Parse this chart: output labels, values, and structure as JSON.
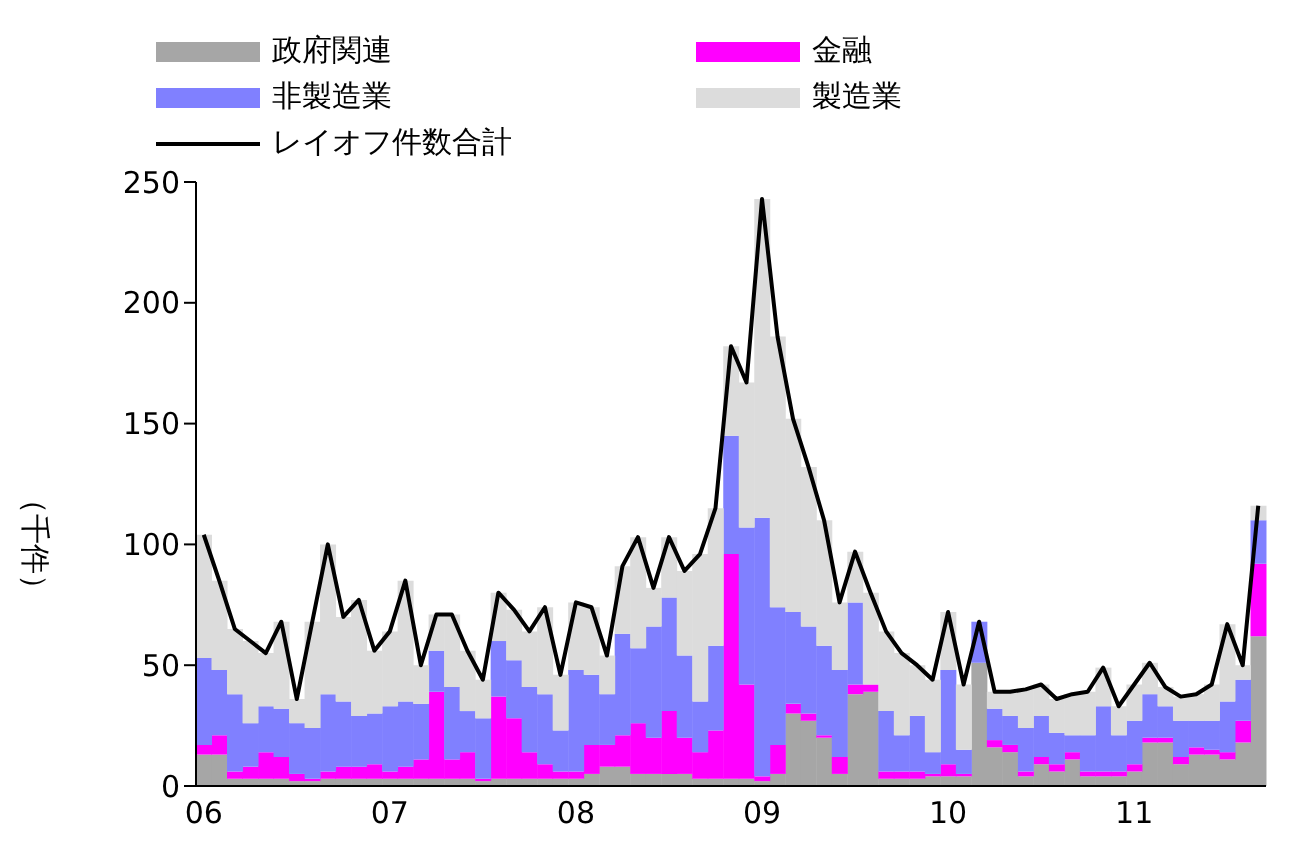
{
  "chart_data": {
    "type": "bar",
    "stacked": true,
    "ylabel": "（千件）",
    "legend": "top",
    "categories": [
      "06",
      null,
      null,
      null,
      null,
      null,
      null,
      null,
      null,
      null,
      null,
      null,
      "07",
      null,
      null,
      null,
      null,
      null,
      null,
      null,
      null,
      null,
      null,
      null,
      "08",
      null,
      null,
      null,
      null,
      null,
      null,
      null,
      null,
      null,
      null,
      null,
      "09",
      null,
      null,
      null,
      null,
      null,
      null,
      null,
      null,
      null,
      null,
      null,
      "10",
      null,
      null,
      null,
      null,
      null,
      null,
      null,
      null,
      null,
      null,
      null,
      "11",
      null,
      null,
      null,
      null,
      null,
      null,
      null,
      null
    ],
    "ylim": [
      0,
      250
    ],
    "yticks": [
      0,
      50,
      100,
      150,
      200,
      250
    ],
    "series": [
      {
        "name": "政府関連",
        "color": "#a6a6a6",
        "values": [
          13,
          13,
          3,
          3,
          3,
          3,
          2,
          2,
          3,
          3,
          3,
          3,
          3,
          3,
          3,
          3,
          3,
          3,
          2,
          3,
          3,
          3,
          3,
          3,
          3,
          5,
          8,
          8,
          5,
          5,
          5,
          5,
          3,
          3,
          3,
          3,
          2,
          5,
          30,
          27,
          20,
          5,
          38,
          39,
          3,
          3,
          3,
          4,
          4,
          4,
          51,
          16,
          14,
          4,
          9,
          6,
          11,
          4,
          4,
          4,
          6,
          18,
          18,
          9,
          13,
          13,
          11,
          18,
          62
        ]
      },
      {
        "name": "金融",
        "color": "#ff00ff",
        "values": [
          4,
          8,
          3,
          5,
          11,
          9,
          3,
          1,
          3,
          5,
          5,
          6,
          3,
          5,
          8,
          36,
          8,
          11,
          1,
          34,
          25,
          11,
          6,
          3,
          3,
          12,
          9,
          13,
          21,
          15,
          26,
          15,
          11,
          20,
          93,
          39,
          2,
          12,
          4,
          3,
          1,
          7,
          4,
          3,
          3,
          3,
          3,
          1,
          5,
          1,
          0,
          3,
          3,
          2,
          3,
          3,
          3,
          2,
          2,
          2,
          3,
          2,
          2,
          3,
          3,
          2,
          3,
          9,
          30
        ]
      },
      {
        "name": "非製造業",
        "color": "#8080ff",
        "values": [
          36,
          27,
          32,
          18,
          19,
          20,
          21,
          21,
          32,
          27,
          21,
          21,
          27,
          27,
          23,
          17,
          30,
          17,
          25,
          23,
          24,
          27,
          29,
          17,
          42,
          29,
          21,
          42,
          31,
          46,
          47,
          34,
          21,
          35,
          49,
          65,
          107,
          57,
          38,
          36,
          37,
          36,
          34,
          0,
          25,
          15,
          23,
          9,
          39,
          10,
          17,
          13,
          12,
          18,
          17,
          13,
          7,
          15,
          27,
          15,
          18,
          18,
          13,
          15,
          11,
          12,
          21,
          17,
          18
        ]
      },
      {
        "name": "製造業",
        "color": "#dcdcdc",
        "values": [
          51,
          37,
          27,
          34,
          22,
          36,
          10,
          44,
          62,
          35,
          48,
          26,
          31,
          50,
          16,
          15,
          30,
          25,
          16,
          20,
          21,
          23,
          36,
          23,
          28,
          28,
          16,
          28,
          46,
          16,
          25,
          35,
          61,
          57,
          37,
          60,
          132,
          112,
          80,
          66,
          52,
          28,
          21,
          38,
          33,
          34,
          21,
          30,
          24,
          27,
          0,
          7,
          10,
          16,
          13,
          14,
          17,
          18,
          16,
          12,
          15,
          13,
          8,
          10,
          11,
          15,
          32,
          6,
          6
        ]
      },
      {
        "name": "レイオフ件数合計",
        "type": "line",
        "color": "#000000",
        "values": [
          104,
          85,
          65,
          60,
          55,
          68,
          36,
          68,
          100,
          70,
          77,
          56,
          64,
          85,
          50,
          71,
          71,
          56,
          44,
          80,
          73,
          64,
          74,
          46,
          76,
          74,
          54,
          91,
          103,
          82,
          103,
          89,
          96,
          115,
          182,
          167,
          243,
          186,
          152,
          132,
          110,
          76,
          97,
          80,
          64,
          55,
          50,
          44,
          72,
          42,
          68,
          39,
          39,
          40,
          42,
          36,
          38,
          39,
          49,
          33,
          42,
          51,
          41,
          37,
          38,
          42,
          67,
          50,
          116
        ]
      }
    ]
  }
}
